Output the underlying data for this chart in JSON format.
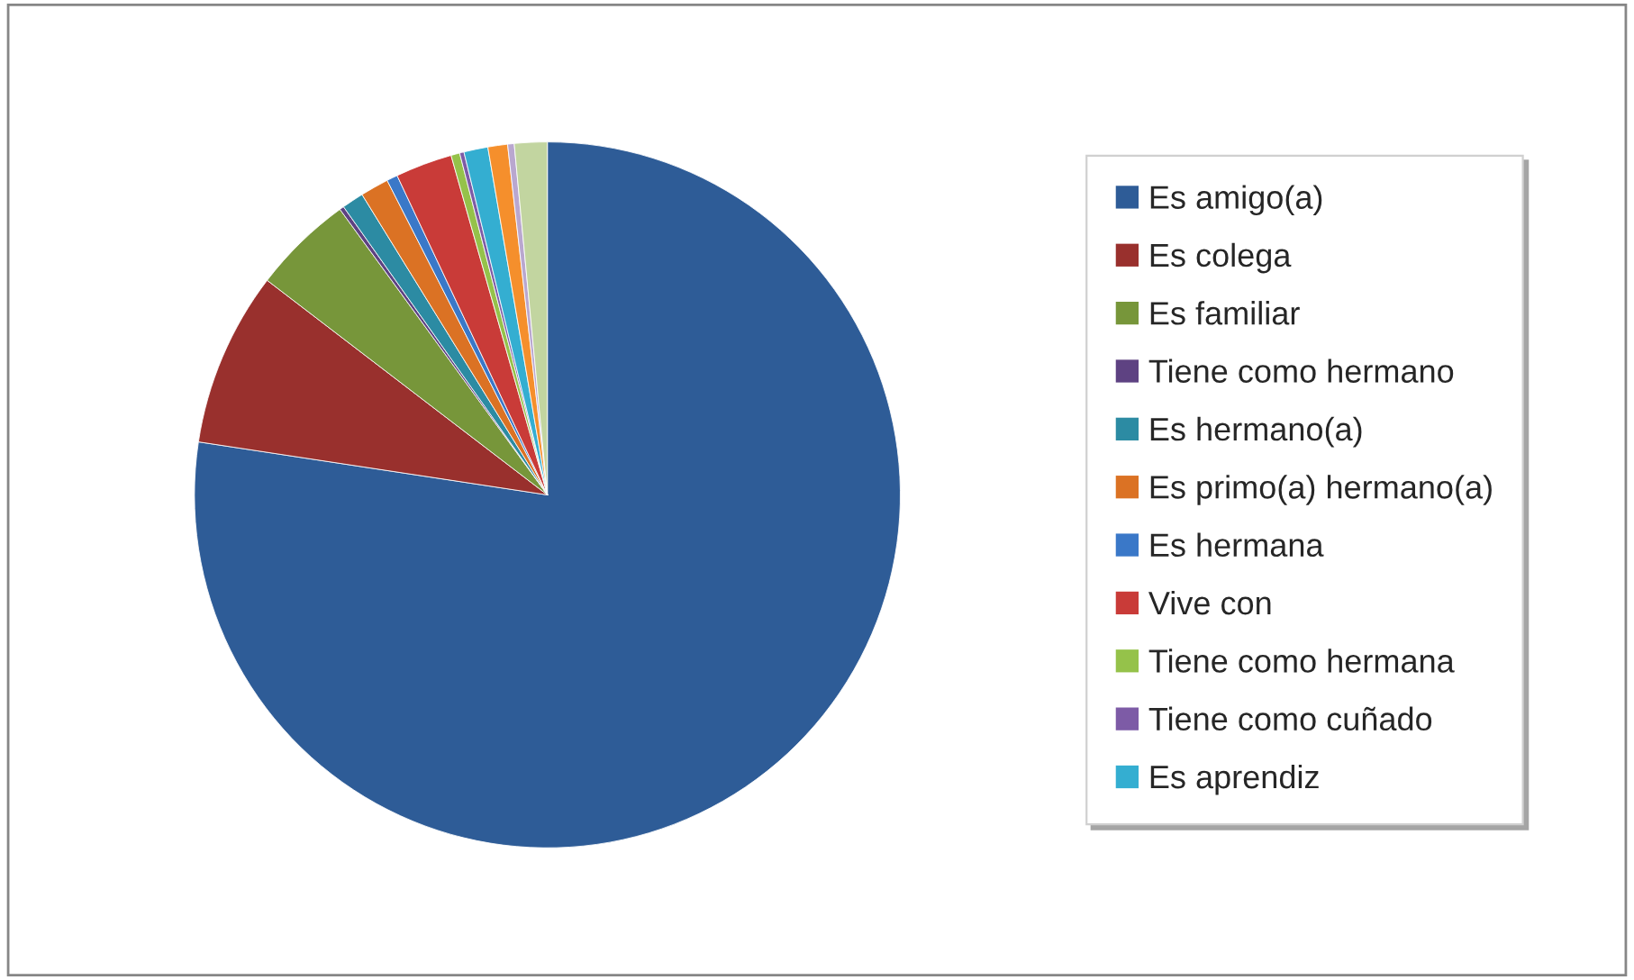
{
  "chart_data": {
    "type": "pie",
    "categories": [
      "Es amigo(a)",
      "Es colega",
      "Es familiar",
      "Tiene como hermano",
      "Es hermano(a)",
      "Es primo(a) hermano(a)",
      "Es hermana",
      "Vive con",
      "Tiene como hermana",
      "Tiene como cuñado",
      "Es aprendiz",
      null,
      null,
      null
    ],
    "values": [
      77.4,
      8.0,
      4.6,
      0.2,
      1.0,
      1.3,
      0.5,
      2.6,
      0.4,
      0.2,
      1.1,
      0.9,
      0.3,
      1.5
    ],
    "colors": [
      "#2e5c97",
      "#99302d",
      "#77963a",
      "#5e4282",
      "#2c8ba3",
      "#db7224",
      "#3a78c8",
      "#c93b38",
      "#95c24a",
      "#7d5ba6",
      "#34aed1",
      "#f58f2c",
      "#b9a7cf",
      "#c2d5a0"
    ],
    "legend": "right"
  }
}
